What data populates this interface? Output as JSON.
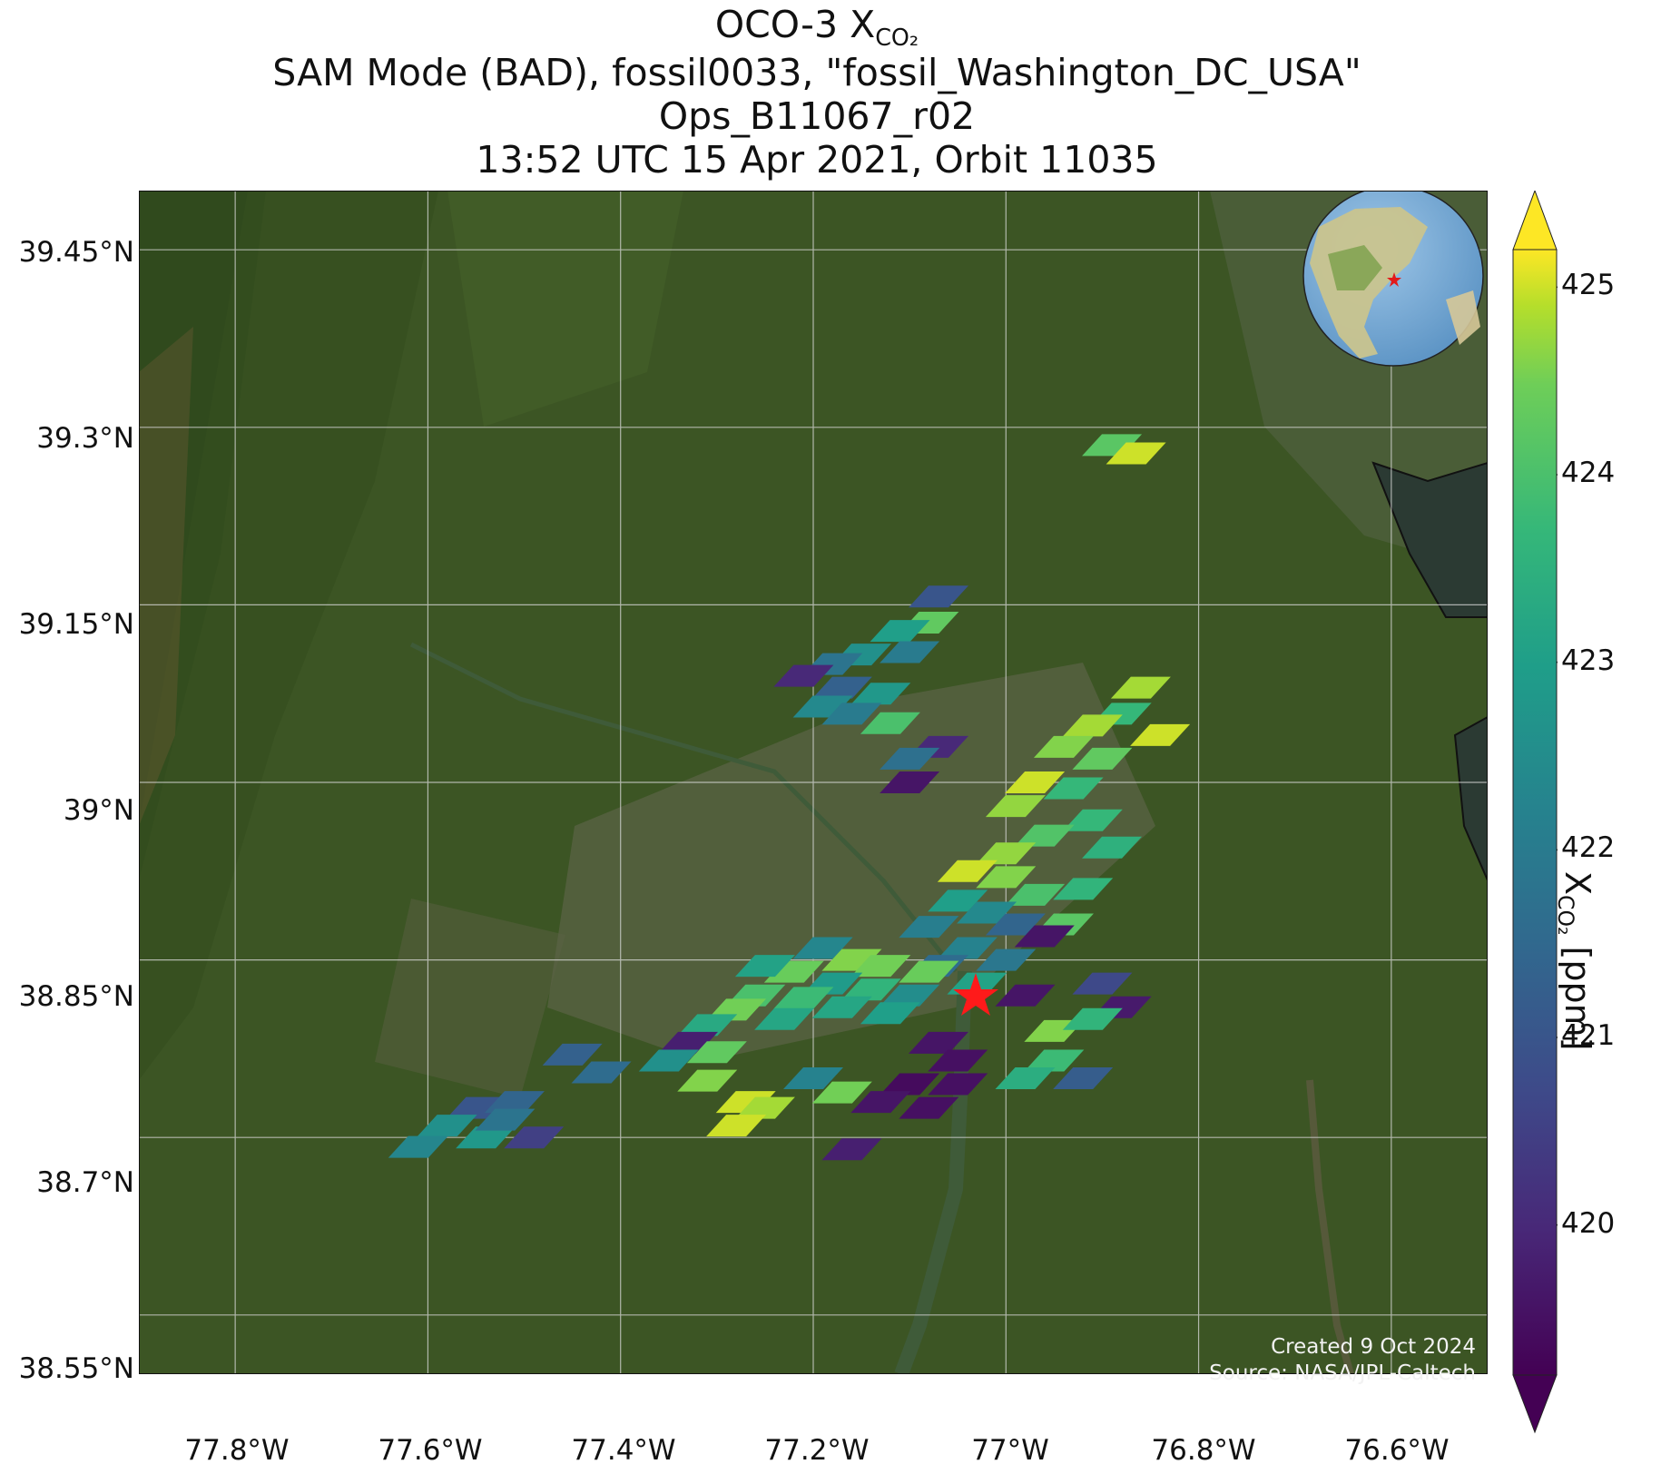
{
  "title": {
    "line1_prefix": "OCO-3 X",
    "line1_sub": "CO₂",
    "line2": "SAM Mode (BAD), fossil0033, \"fossil_Washington_DC_USA\"",
    "line3": "Ops_B11067_r02",
    "line4": "13:52 UTC 15 Apr 2021, Orbit 11035"
  },
  "map": {
    "extent": {
      "lon_min": -77.9,
      "lon_max": -76.5,
      "lat_min": 38.5,
      "lat_max": 39.5
    },
    "lat_ticks": [
      "39.45°N",
      "39.3°N",
      "39.15°N",
      "39°N",
      "38.85°N",
      "38.7°N",
      "38.55°N"
    ],
    "lon_ticks": [
      "77.8°W",
      "77.6°W",
      "77.4°W",
      "77.2°W",
      "77°W",
      "76.8°W",
      "76.6°W"
    ],
    "target_marker": "red-star",
    "basemap": "satellite-imagery",
    "inset": "globe-north-america"
  },
  "colorbar": {
    "colormap": "viridis",
    "min": 419.2,
    "max": 425.2,
    "ticks": [
      "425",
      "424",
      "423",
      "422",
      "421",
      "420"
    ],
    "label_prefix": "X",
    "label_sub": "CO₂",
    "label_suffix": " [ppm]"
  },
  "credits": {
    "created": "Created 9 Oct 2024",
    "source": "Source: NASA/JPL-Caltech"
  },
  "colors": {
    "target": "#ff1a1a",
    "credit_text": "#f2f2f2"
  }
}
